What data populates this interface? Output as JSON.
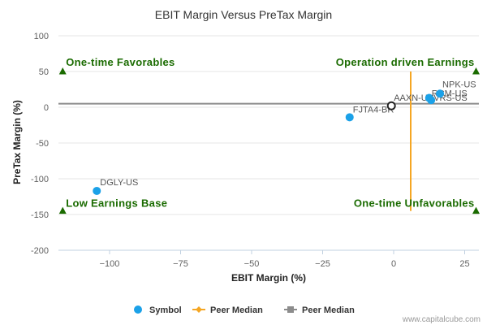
{
  "chart_data": {
    "type": "scatter",
    "title": "EBIT Margin Versus PreTax Margin",
    "xlabel": "EBIT Margin (%)",
    "ylabel": "PreTax Margin (%)",
    "xlim": [
      -118,
      30
    ],
    "ylim": [
      -200,
      100
    ],
    "xticks": [
      -100,
      -75,
      -50,
      -25,
      0,
      25
    ],
    "xtick_labels": [
      "−100",
      "−75",
      "−50",
      "−25",
      "0",
      "25"
    ],
    "yticks": [
      100,
      50,
      0,
      -50,
      -100,
      -150,
      -200
    ],
    "ytick_labels": [
      "100",
      "50",
      "0",
      "-50",
      "-100",
      "-150",
      "-200"
    ],
    "grid": "horizontal",
    "series": [
      {
        "name": "Symbol",
        "color": "#1ba1e8",
        "points": [
          {
            "label": "DGLY-US",
            "x": -104.5,
            "y": -117
          },
          {
            "label": "FJTA4-BR",
            "x": -15.5,
            "y": -14
          },
          {
            "label": "AAXN-US",
            "x": -0.8,
            "y": 2,
            "hollow": true
          },
          {
            "label": "RCM-US",
            "x": 12.5,
            "y": 13
          },
          {
            "label": "VRS-US",
            "x": 13.2,
            "y": 10
          },
          {
            "label": "NPK-US",
            "x": 16.3,
            "y": 19
          }
        ]
      }
    ],
    "peer_median_x": 6,
    "peer_median_y": 5,
    "peer_median_x_span": [
      -145,
      50
    ],
    "peer_median_colors": {
      "vertical": "#f5a623",
      "horizontal": "#8c8c8c"
    },
    "quadrant_labels": {
      "top_left": "One-time Favorables",
      "top_right": "Operation driven Earnings",
      "bottom_left": "Low Earnings Base",
      "bottom_right": "One-time Unfavorables"
    },
    "quadrant_markers": [
      {
        "x": -116.5,
        "y": 50
      },
      {
        "x": 29,
        "y": 50
      },
      {
        "x": -116.5,
        "y": -145
      },
      {
        "x": 29,
        "y": -145
      }
    ],
    "quadrant_color": "#1a6b00",
    "legend": {
      "position": "bottom-center",
      "items": [
        {
          "label": "Symbol",
          "kind": "dot",
          "color": "#1ba1e8"
        },
        {
          "label": "Peer Median",
          "kind": "line-diamond",
          "color": "#f5a623"
        },
        {
          "label": "Peer Median",
          "kind": "line-square",
          "color": "#8c8c8c"
        }
      ]
    },
    "credit": "www.capitalcube.com"
  }
}
